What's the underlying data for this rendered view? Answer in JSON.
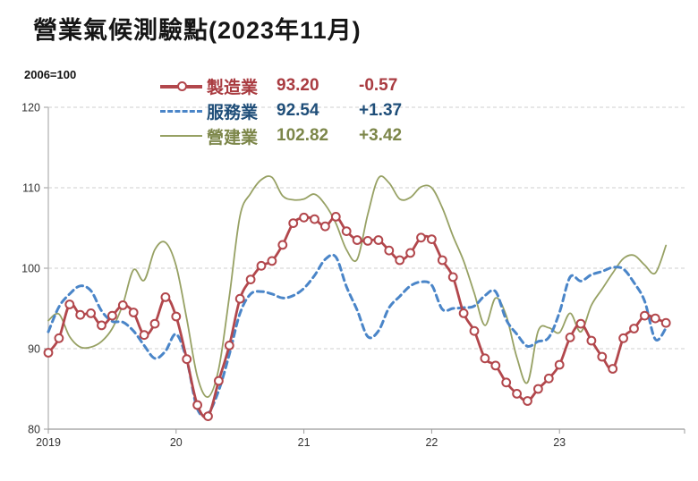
{
  "title": "營業氣候測驗點(2023年11月)",
  "axis_note": "2006=100",
  "legend": [
    {
      "id": "manufacturing",
      "label": "製造業",
      "value": "93.20",
      "change": "-0.57",
      "line_color": "#B2474C",
      "text_color": "#A93B40",
      "style": "solid-marker"
    },
    {
      "id": "services",
      "label": "服務業",
      "value": "92.54",
      "change": "+1.37",
      "line_color": "#4A85C8",
      "text_color": "#1F4E79",
      "style": "dashed"
    },
    {
      "id": "construction",
      "label": "營建業",
      "value": "102.82",
      "change": "+3.42",
      "line_color": "#97A164",
      "text_color": "#7C8649",
      "style": "solid-thin"
    }
  ],
  "chart_data": {
    "type": "line",
    "title": "營業氣候測驗點(2023年11月)",
    "baseline_note": "2006=100",
    "x_unit": "month",
    "x_range": {
      "start": "2019-01",
      "end": "2023-11",
      "points": 59
    },
    "x_tick_labels": [
      "2019",
      "20",
      "21",
      "22",
      "23"
    ],
    "x_tick_month_index": [
      0,
      12,
      24,
      36,
      48
    ],
    "y_ticks": [
      80,
      90,
      100,
      110,
      120
    ],
    "ylim": [
      80,
      120
    ],
    "grid": "horizontal-dashed",
    "legend_position": "top-center",
    "series": [
      {
        "id": "manufacturing",
        "name": "製造業",
        "color": "#B2474C",
        "dash": null,
        "width": 2.8,
        "markers": true,
        "latest": 93.2,
        "monthly_change": -0.57,
        "values": [
          89.5,
          91.3,
          95.5,
          94.2,
          94.4,
          92.9,
          94.1,
          95.4,
          94.5,
          91.7,
          93.1,
          96.4,
          94.0,
          88.7,
          83.0,
          81.6,
          86.0,
          90.4,
          96.2,
          98.6,
          100.3,
          100.9,
          102.9,
          105.6,
          106.3,
          106.1,
          105.2,
          106.4,
          104.6,
          103.5,
          103.4,
          103.5,
          102.2,
          101.0,
          101.9,
          103.8,
          103.6,
          101.0,
          98.9,
          94.4,
          92.2,
          88.8,
          87.9,
          85.8,
          84.4,
          83.5,
          85.0,
          86.3,
          88.0,
          91.4,
          93.1,
          91.0,
          89.0,
          87.5,
          91.3,
          92.5,
          94.1,
          93.77,
          93.2
        ]
      },
      {
        "id": "services",
        "name": "服務業",
        "color": "#4A85C8",
        "dash": "7 5",
        "width": 3,
        "markers": false,
        "latest": 92.54,
        "monthly_change": 1.37,
        "values": [
          92.1,
          95.2,
          96.8,
          97.8,
          97.2,
          94.7,
          93.4,
          93.3,
          92.2,
          90.4,
          88.8,
          89.7,
          91.8,
          88.6,
          82.5,
          82.0,
          84.8,
          89.3,
          94.4,
          96.8,
          97.1,
          96.8,
          96.3,
          96.6,
          97.5,
          99.1,
          101.1,
          101.4,
          97.7,
          94.8,
          91.5,
          92.2,
          95.1,
          96.5,
          97.8,
          98.3,
          97.9,
          94.9,
          95.0,
          95.1,
          95.3,
          96.6,
          97.1,
          93.6,
          91.8,
          90.3,
          90.9,
          91.4,
          94.5,
          98.9,
          98.4,
          99.2,
          99.6,
          100.1,
          99.9,
          98.2,
          95.9,
          91.17,
          92.54
        ]
      },
      {
        "id": "construction",
        "name": "營建業",
        "color": "#97A164",
        "dash": null,
        "width": 1.8,
        "markers": false,
        "latest": 102.82,
        "monthly_change": 3.42,
        "values": [
          93.5,
          94.3,
          91.5,
          90.2,
          90.2,
          90.9,
          92.5,
          95.5,
          99.8,
          98.5,
          102.3,
          103.2,
          100.3,
          93.7,
          86.5,
          84.0,
          87.5,
          96.5,
          106.5,
          109.3,
          111.0,
          111.3,
          109.0,
          108.5,
          108.6,
          109.2,
          107.9,
          105.6,
          102.3,
          101.1,
          106.7,
          111.2,
          110.6,
          108.6,
          108.8,
          110.1,
          110.0,
          107.5,
          104.0,
          100.9,
          96.9,
          92.9,
          96.3,
          94.1,
          88.9,
          85.8,
          92.2,
          92.6,
          92.0,
          94.4,
          92.1,
          95.4,
          97.4,
          99.4,
          101.2,
          101.6,
          100.4,
          99.4,
          102.82
        ]
      }
    ]
  }
}
